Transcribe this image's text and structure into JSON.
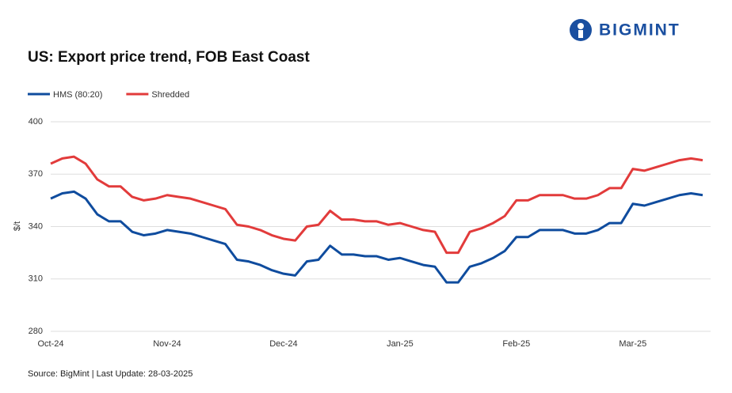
{
  "logo": {
    "text": "BIGMINT"
  },
  "chart_data": {
    "type": "line",
    "title": "US: Export price trend, FOB East Coast",
    "y_label": "$/t",
    "source": "Source: BigMint | Last Update: 28-03-2025",
    "categories": [
      "Oct-24",
      null,
      null,
      null,
      null,
      null,
      null,
      null,
      null,
      null,
      "Nov-24",
      null,
      null,
      null,
      null,
      null,
      null,
      null,
      null,
      null,
      "Dec-24",
      null,
      null,
      null,
      null,
      null,
      null,
      null,
      null,
      null,
      "Jan-25",
      null,
      null,
      null,
      null,
      null,
      null,
      null,
      null,
      null,
      "Feb-25",
      null,
      null,
      null,
      null,
      null,
      null,
      null,
      null,
      null,
      "Mar-25",
      null,
      null,
      null,
      null,
      null,
      null
    ],
    "series": [
      {
        "name": "HMS (80:20)",
        "color": "#0f4c9e",
        "values": [
          356,
          359,
          360,
          356,
          347,
          343,
          343,
          337,
          335,
          336,
          338,
          337,
          336,
          334,
          332,
          330,
          321,
          320,
          318,
          315,
          313,
          312,
          320,
          321,
          329,
          324,
          324,
          323,
          323,
          321,
          322,
          320,
          318,
          317,
          308,
          308,
          317,
          319,
          322,
          326,
          334,
          334,
          338,
          338,
          338,
          336,
          336,
          338,
          342,
          342,
          353,
          352,
          354,
          356,
          358,
          359,
          358
        ]
      },
      {
        "name": "Shredded",
        "color": "#e23b3b",
        "values": [
          376,
          379,
          380,
          376,
          367,
          363,
          363,
          357,
          355,
          356,
          358,
          357,
          356,
          354,
          352,
          350,
          341,
          340,
          338,
          335,
          333,
          332,
          340,
          341,
          349,
          344,
          344,
          343,
          343,
          341,
          342,
          340,
          338,
          337,
          325,
          325,
          337,
          339,
          342,
          346,
          355,
          355,
          358,
          358,
          358,
          356,
          356,
          358,
          362,
          362,
          373,
          372,
          374,
          376,
          378,
          379,
          378
        ]
      }
    ],
    "ylim": [
      280,
      400
    ],
    "yticks": [
      280,
      310,
      340,
      370,
      400
    ],
    "grid": true,
    "legend": "top-left"
  }
}
